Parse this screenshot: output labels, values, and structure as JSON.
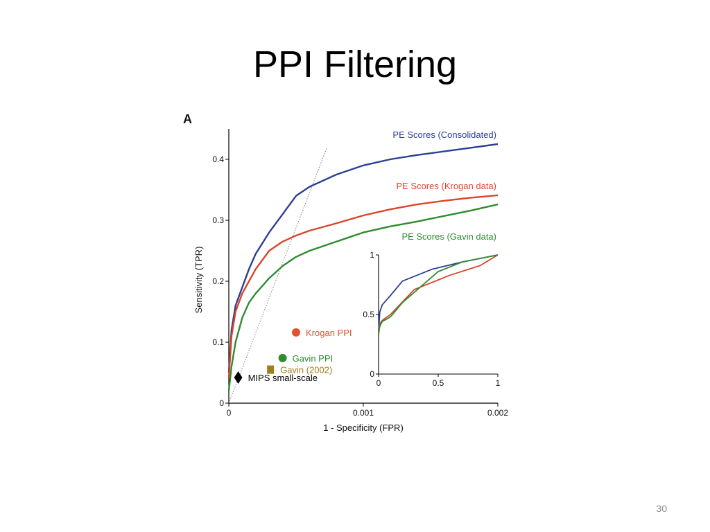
{
  "slide": {
    "title": "PPI Filtering",
    "page_number": "30"
  },
  "chart_data": {
    "type": "line",
    "panel_label": "A",
    "xlabel": "1 - Specificity (FPR)",
    "ylabel": "Sensitivity (TPR)",
    "xlim": [
      0,
      0.002
    ],
    "ylim": [
      0,
      0.45
    ],
    "xticks": [
      0,
      0.001,
      0.002
    ],
    "xtick_labels": [
      "0",
      "0.001",
      "0.002"
    ],
    "yticks": [
      0,
      0.1,
      0.2,
      0.3,
      0.4
    ],
    "ytick_labels": [
      "0",
      "0.1",
      "0.2",
      "0.3",
      "0.4"
    ],
    "grid": false,
    "series": [
      {
        "name": "PE Scores (Consolidated)",
        "color": "#2b3f93",
        "x": [
          0,
          2e-05,
          5e-05,
          0.0001,
          0.00015,
          0.0002,
          0.0003,
          0.0004,
          0.0005,
          0.0006,
          0.0008,
          0.001,
          0.0012,
          0.0014,
          0.0016,
          0.0018,
          0.002
        ],
        "y": [
          0.05,
          0.12,
          0.16,
          0.19,
          0.22,
          0.245,
          0.28,
          0.31,
          0.34,
          0.355,
          0.375,
          0.39,
          0.4,
          0.407,
          0.413,
          0.419,
          0.425
        ]
      },
      {
        "name": "PE Scores (Krogan data)",
        "color": "#d9452a",
        "x": [
          0,
          2e-05,
          5e-05,
          0.0001,
          0.00015,
          0.0002,
          0.0003,
          0.0004,
          0.0005,
          0.0006,
          0.0008,
          0.001,
          0.0012,
          0.0014,
          0.0016,
          0.0018,
          0.002
        ],
        "y": [
          0.04,
          0.11,
          0.15,
          0.18,
          0.2,
          0.22,
          0.25,
          0.265,
          0.275,
          0.283,
          0.295,
          0.308,
          0.318,
          0.326,
          0.332,
          0.337,
          0.341
        ]
      },
      {
        "name": "PE Scores (Gavin data)",
        "color": "#2e8b2e",
        "x": [
          0,
          2e-05,
          5e-05,
          0.0001,
          0.00015,
          0.0002,
          0.0003,
          0.0004,
          0.0005,
          0.0006,
          0.0008,
          0.001,
          0.0012,
          0.0014,
          0.0016,
          0.0018,
          0.002
        ],
        "y": [
          0.02,
          0.06,
          0.1,
          0.14,
          0.165,
          0.18,
          0.205,
          0.225,
          0.24,
          0.25,
          0.265,
          0.28,
          0.29,
          0.298,
          0.307,
          0.316,
          0.326
        ]
      }
    ],
    "reference_line": {
      "style": "dotted",
      "x": [
        0,
        0.00073
      ],
      "y": [
        0,
        0.42
      ]
    },
    "points": [
      {
        "name": "Krogan PPI",
        "x": 0.0005,
        "y": 0.116,
        "marker": "circle",
        "color": "#e0522e"
      },
      {
        "name": "Gavin PPI",
        "x": 0.0004,
        "y": 0.074,
        "marker": "circle",
        "color": "#2e8b2e"
      },
      {
        "name": "Gavin (2002)",
        "x": 0.00031,
        "y": 0.055,
        "marker": "square",
        "color": "#a07e1c"
      },
      {
        "name": "MIPS small-scale",
        "x": 7e-05,
        "y": 0.042,
        "marker": "diamond",
        "color": "#000000"
      }
    ],
    "inset": {
      "type": "line",
      "xlim": [
        0,
        1
      ],
      "ylim": [
        0,
        1
      ],
      "xticks": [
        0,
        0.5,
        1
      ],
      "xtick_labels": [
        "0",
        "0.5",
        "1"
      ],
      "yticks": [
        0,
        0.5,
        1
      ],
      "ytick_labels": [
        "0",
        "0.5",
        "1"
      ],
      "series": [
        {
          "color": "#2b3f93",
          "x": [
            0,
            0.01,
            0.03,
            0.1,
            0.2,
            0.45,
            0.7,
            1
          ],
          "y": [
            0.35,
            0.52,
            0.58,
            0.66,
            0.78,
            0.88,
            0.94,
            1
          ]
        },
        {
          "color": "#d9452a",
          "x": [
            0,
            0.01,
            0.03,
            0.1,
            0.3,
            0.6,
            0.85,
            1
          ],
          "y": [
            0.33,
            0.42,
            0.45,
            0.5,
            0.71,
            0.83,
            0.91,
            1
          ]
        },
        {
          "color": "#2e8b2e",
          "x": [
            0,
            0.01,
            0.03,
            0.1,
            0.2,
            0.5,
            0.7,
            1
          ],
          "y": [
            0.33,
            0.4,
            0.44,
            0.48,
            0.6,
            0.86,
            0.94,
            1
          ]
        }
      ]
    }
  }
}
